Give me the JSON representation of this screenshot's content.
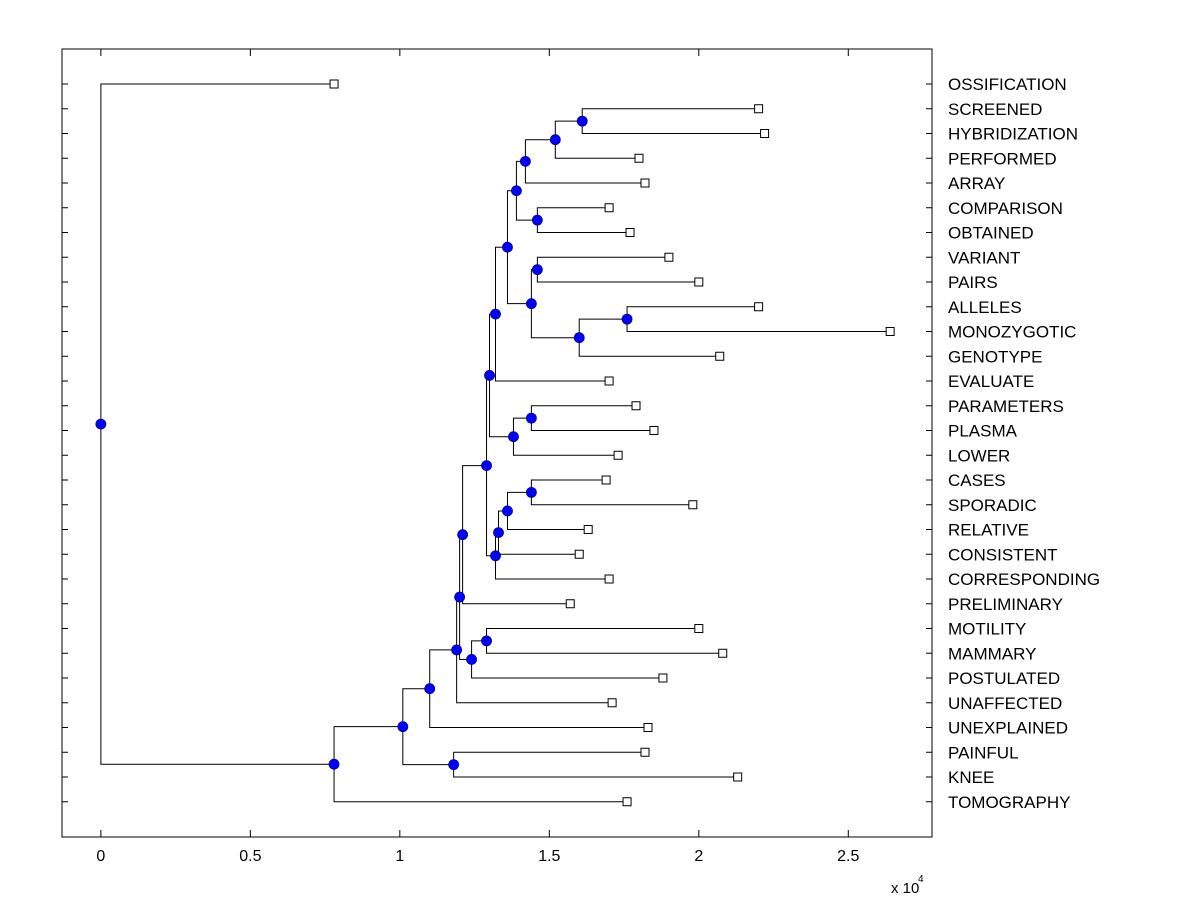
{
  "chart_data": {
    "type": "dendrogram",
    "title": "",
    "xlabel": "",
    "ylabel": "",
    "x_exponent_label": "x 10",
    "x_exponent_power": "4",
    "xlim": [
      -0.13,
      2.78
    ],
    "x_ticks": [
      0,
      0.5,
      1,
      1.5,
      2,
      2.5
    ],
    "x_tick_labels": [
      "0",
      "0.5",
      "1",
      "1.5",
      "2",
      "2.5"
    ],
    "colors": {
      "internal_node": "#0000ff",
      "leaf_node": "#ffffff",
      "line": "#000000"
    },
    "leaves": [
      {
        "label": "OSSIFICATION",
        "x": 0.78
      },
      {
        "label": "SCREENED",
        "x": 2.2
      },
      {
        "label": "HYBRIDIZATION",
        "x": 2.22
      },
      {
        "label": "PERFORMED",
        "x": 1.8
      },
      {
        "label": "ARRAY",
        "x": 1.82
      },
      {
        "label": "COMPARISON",
        "x": 1.7
      },
      {
        "label": "OBTAINED",
        "x": 1.77
      },
      {
        "label": "VARIANT",
        "x": 1.9
      },
      {
        "label": "PAIRS",
        "x": 2.0
      },
      {
        "label": "ALLELES",
        "x": 2.2
      },
      {
        "label": "MONOZYGOTIC",
        "x": 2.64
      },
      {
        "label": "GENOTYPE",
        "x": 2.07
      },
      {
        "label": "EVALUATE",
        "x": 1.7
      },
      {
        "label": "PARAMETERS",
        "x": 1.79
      },
      {
        "label": "PLASMA",
        "x": 1.85
      },
      {
        "label": "LOWER",
        "x": 1.73
      },
      {
        "label": "CASES",
        "x": 1.69
      },
      {
        "label": "SPORADIC",
        "x": 1.98
      },
      {
        "label": "RELATIVE",
        "x": 1.63
      },
      {
        "label": "CONSISTENT",
        "x": 1.6
      },
      {
        "label": "CORRESPONDING",
        "x": 1.7
      },
      {
        "label": "PRELIMINARY",
        "x": 1.57
      },
      {
        "label": "MOTILITY",
        "x": 2.0
      },
      {
        "label": "MAMMARY",
        "x": 2.08
      },
      {
        "label": "POSTULATED",
        "x": 1.88
      },
      {
        "label": "UNAFFECTED",
        "x": 1.71
      },
      {
        "label": "UNEXPLAINED",
        "x": 1.83
      },
      {
        "label": "PAINFUL",
        "x": 1.82
      },
      {
        "label": "KNEE",
        "x": 2.13
      },
      {
        "label": "TOMOGRAPHY",
        "x": 1.76
      }
    ],
    "merges": [
      {
        "id": "n1",
        "left": "L1",
        "right": "L2",
        "x": 1.61
      },
      {
        "id": "n2",
        "left": "n1",
        "right": "L3",
        "x": 1.52
      },
      {
        "id": "n3",
        "left": "n2",
        "right": "L4",
        "x": 1.42
      },
      {
        "id": "n4",
        "left": "L5",
        "right": "L6",
        "x": 1.46
      },
      {
        "id": "n5",
        "left": "n3",
        "right": "n4",
        "x": 1.39
      },
      {
        "id": "n6",
        "left": "L7",
        "right": "L8",
        "x": 1.46
      },
      {
        "id": "n7",
        "left": "L9",
        "right": "L10",
        "x": 1.76
      },
      {
        "id": "n8",
        "left": "n7",
        "right": "L11",
        "x": 1.6
      },
      {
        "id": "n9",
        "left": "n6",
        "right": "n8",
        "x": 1.44
      },
      {
        "id": "n10",
        "left": "n5",
        "right": "n9",
        "x": 1.36
      },
      {
        "id": "n11",
        "left": "n10",
        "right": "L12",
        "x": 1.32
      },
      {
        "id": "n12",
        "left": "L13",
        "right": "L14",
        "x": 1.44
      },
      {
        "id": "n13",
        "left": "n12",
        "right": "L15",
        "x": 1.38
      },
      {
        "id": "n14",
        "left": "n11",
        "right": "n13",
        "x": 1.3
      },
      {
        "id": "n15",
        "left": "L16",
        "right": "L17",
        "x": 1.44
      },
      {
        "id": "n16",
        "left": "n15",
        "right": "L18",
        "x": 1.36
      },
      {
        "id": "n17",
        "left": "n16",
        "right": "L19",
        "x": 1.33
      },
      {
        "id": "n18",
        "left": "n17",
        "right": "L20",
        "x": 1.32
      },
      {
        "id": "n19",
        "left": "n14",
        "right": "n18",
        "x": 1.29
      },
      {
        "id": "n20",
        "left": "n19",
        "right": "L21",
        "x": 1.21
      },
      {
        "id": "n21",
        "left": "L22",
        "right": "L23",
        "x": 1.29
      },
      {
        "id": "n22",
        "left": "n21",
        "right": "L24",
        "x": 1.24
      },
      {
        "id": "n23",
        "left": "n20",
        "right": "n22",
        "x": 1.2
      },
      {
        "id": "n24",
        "left": "n23",
        "right": "L25",
        "x": 1.19
      },
      {
        "id": "n25",
        "left": "n24",
        "right": "L26",
        "x": 1.1
      },
      {
        "id": "n26",
        "left": "L27",
        "right": "L28",
        "x": 1.18
      },
      {
        "id": "n27",
        "left": "n25",
        "right": "n26",
        "x": 1.01
      },
      {
        "id": "n28",
        "left": "n27",
        "right": "L29",
        "x": 0.78
      },
      {
        "id": "n29",
        "left": "L0",
        "right": "n28",
        "x": 0.0
      }
    ]
  }
}
